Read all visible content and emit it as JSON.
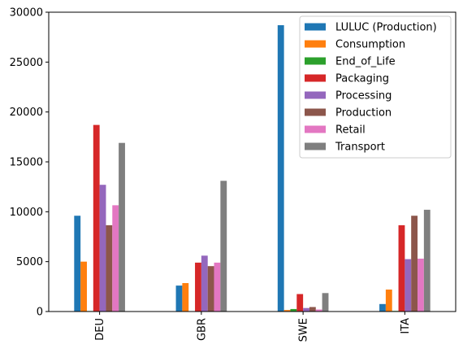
{
  "chart_data": {
    "type": "bar",
    "categories": [
      "DEU",
      "GBR",
      "SWE",
      "ITA"
    ],
    "series": [
      {
        "name": "LULUC (Production)",
        "color": "#1f77b4",
        "values": [
          9600,
          2600,
          28700,
          750
        ]
      },
      {
        "name": "Consumption",
        "color": "#ff7f0e",
        "values": [
          5000,
          2850,
          150,
          2200
        ]
      },
      {
        "name": "End_of_Life",
        "color": "#2ca02c",
        "values": [
          50,
          30,
          250,
          60
        ]
      },
      {
        "name": "Packaging",
        "color": "#d62728",
        "values": [
          18700,
          4900,
          1750,
          8650
        ]
      },
      {
        "name": "Processing",
        "color": "#9467bd",
        "values": [
          12700,
          5600,
          350,
          5250
        ]
      },
      {
        "name": "Production",
        "color": "#8c564b",
        "values": [
          8650,
          4550,
          450,
          9600
        ]
      },
      {
        "name": "Retail",
        "color": "#e377c2",
        "values": [
          10650,
          4900,
          200,
          5300
        ]
      },
      {
        "name": "Transport",
        "color": "#7f7f7f",
        "values": [
          16900,
          13100,
          1850,
          10200
        ]
      }
    ],
    "ylim": [
      0,
      30000
    ],
    "yticks": [
      "0",
      "5000",
      "10000",
      "15000",
      "20000",
      "25000",
      "30000"
    ],
    "xlabel": "",
    "ylabel": "",
    "grid": false,
    "legend_position": "top-right"
  }
}
